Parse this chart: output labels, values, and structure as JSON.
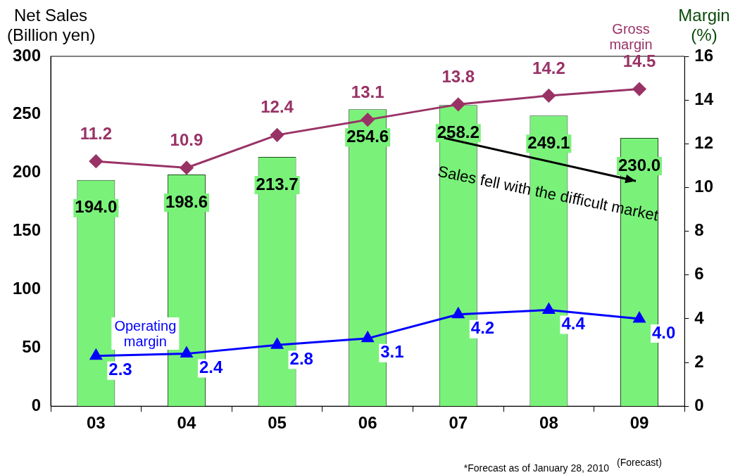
{
  "chart_data": {
    "type": "bar",
    "categories": [
      "03",
      "04",
      "05",
      "06",
      "07",
      "08",
      "09"
    ],
    "ylabel": "Net Sales\n(Billion yen)",
    "y2label": "Margin\n(%)",
    "ylim": [
      0,
      300
    ],
    "yticks": [
      0,
      50,
      100,
      150,
      200,
      250,
      300
    ],
    "y2lim": [
      0,
      16
    ],
    "y2ticks": [
      0,
      2,
      4,
      6,
      8,
      10,
      12,
      14,
      16
    ],
    "series": [
      {
        "color": "#7af27a",
        "values": [
          194.0,
          198.6,
          213.7,
          254.6,
          258.2,
          249.1,
          230.0
        ],
        "value_labels": [
          "194.0",
          "198.6",
          "213.7",
          "254.6",
          "258.2",
          "249.1",
          "230.0"
        ]
      },
      {
        "type": "line",
        "name": "Gross margin",
        "axis": "y2",
        "color": "#993366",
        "marker": "diamond",
        "values": [
          11.2,
          10.9,
          12.4,
          13.1,
          13.8,
          14.2,
          14.5
        ],
        "value_labels": [
          "11.2",
          "10.9",
          "12.4",
          "13.1",
          "13.8",
          "14.2",
          "14.5"
        ]
      },
      {
        "type": "line",
        "name": "Operating margin",
        "axis": "y2",
        "color": "#0000ff",
        "marker": "triangle",
        "values": [
          2.3,
          2.4,
          2.8,
          3.1,
          4.2,
          4.4,
          4.0
        ],
        "value_labels": [
          "2.3",
          "2.4",
          "2.8",
          "3.1",
          "4.2",
          "4.4",
          "4.0"
        ]
      }
    ],
    "annotations": [
      "Sales fell with the difficult market",
      "(Forecast)",
      "*Forecast as of January 28, 2010"
    ],
    "grid": false,
    "legend": false
  }
}
